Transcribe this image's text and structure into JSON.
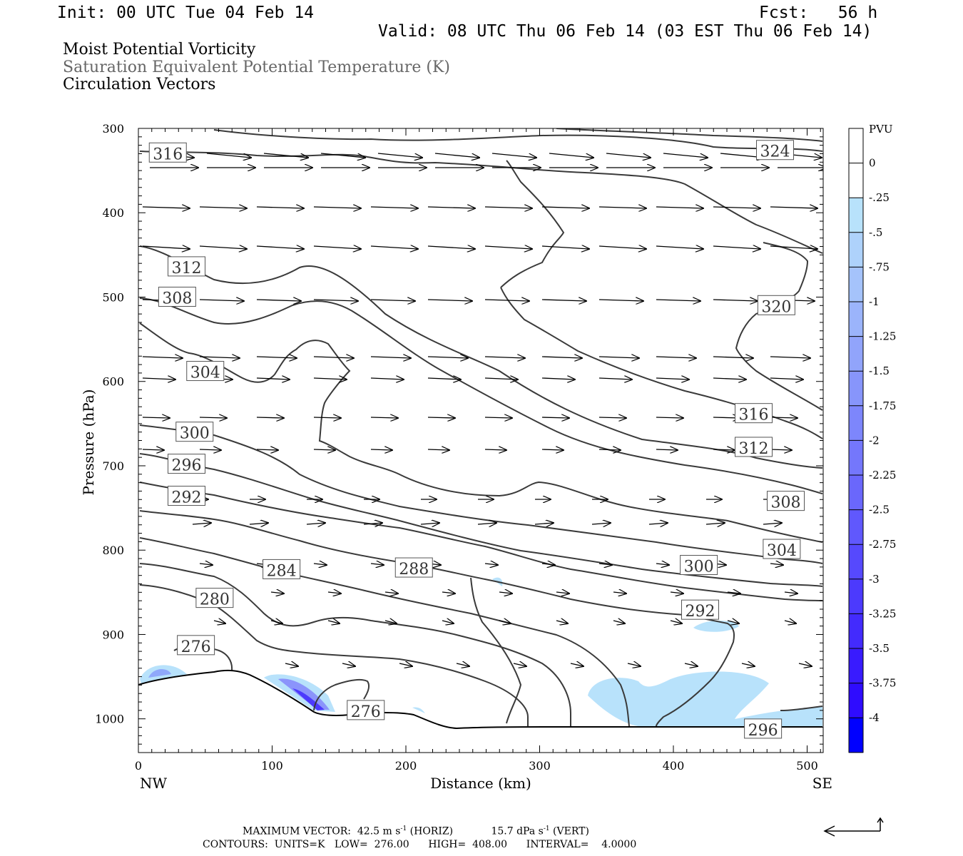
{
  "header": {
    "init": "Init: 00 UTC Tue 04 Feb 14",
    "fcst": "Fcst:   56 h",
    "valid": "Valid: 08 UTC Thu 06 Feb 14 (03 EST Thu 06 Feb 14)",
    "field1": "Moist Potential Vorticity",
    "field2": "Saturation Equivalent Potential Temperature (K)",
    "field3": "Circulation Vectors"
  },
  "chart_data": {
    "type": "cross-section",
    "ylabel": "Pressure (hPa)",
    "xlabel": "Distance (km)",
    "x_left_label": "NW",
    "x_right_label": "SE",
    "xlim": [
      0,
      512
    ],
    "ylim": [
      1040,
      300
    ],
    "x_ticks": [
      0,
      100,
      200,
      300,
      400,
      500
    ],
    "y_ticks": [
      300,
      400,
      500,
      600,
      700,
      800,
      900,
      1000
    ],
    "colorbar": {
      "unit": "PVU",
      "levels": [
        "0",
        "-.25",
        "-.5",
        "-.75",
        "-1",
        "-1.25",
        "-1.5",
        "-1.75",
        "-2",
        "-2.25",
        "-2.5",
        "-2.75",
        "-3",
        "-3.25",
        "-3.5",
        "-3.75",
        "-4"
      ],
      "colors": [
        "#ffffff",
        "#ffffff",
        "#b8e2fb",
        "#aed2fb",
        "#a5c3fb",
        "#9bb4fb",
        "#91a4fb",
        "#8795fb",
        "#7d86fc",
        "#7477fc",
        "#6a67fc",
        "#6058fd",
        "#5649fd",
        "#4c3afd",
        "#432bfd",
        "#391bfe",
        "#2f0cfe",
        "#0000ff"
      ]
    },
    "contour_labels": [
      {
        "text": "316",
        "x": 22,
        "p": 329
      },
      {
        "text": "324",
        "x": 476,
        "p": 326
      },
      {
        "text": "312",
        "x": 36,
        "p": 464
      },
      {
        "text": "308",
        "x": 29,
        "p": 500
      },
      {
        "text": "320",
        "x": 477,
        "p": 510
      },
      {
        "text": "304",
        "x": 50,
        "p": 588
      },
      {
        "text": "316",
        "x": 460,
        "p": 638
      },
      {
        "text": "300",
        "x": 42,
        "p": 660
      },
      {
        "text": "312",
        "x": 460,
        "p": 678
      },
      {
        "text": "296",
        "x": 36,
        "p": 698
      },
      {
        "text": "292",
        "x": 36,
        "p": 736
      },
      {
        "text": "308",
        "x": 484,
        "p": 742
      },
      {
        "text": "304",
        "x": 481,
        "p": 799
      },
      {
        "text": "300",
        "x": 419,
        "p": 818
      },
      {
        "text": "284",
        "x": 107,
        "p": 823
      },
      {
        "text": "288",
        "x": 206,
        "p": 821
      },
      {
        "text": "280",
        "x": 57,
        "p": 857
      },
      {
        "text": "292",
        "x": 420,
        "p": 871
      },
      {
        "text": "276",
        "x": 43,
        "p": 913
      },
      {
        "text": "276",
        "x": 170,
        "p": 990
      },
      {
        "text": "296",
        "x": 467,
        "p": 1012
      }
    ],
    "contour_units": "K",
    "contour_low": "276.00",
    "contour_high": "408.00",
    "contour_interval": "4.0000",
    "max_vector_horiz": "42.5",
    "max_vector_vert": "15.7"
  },
  "footer": {
    "line1_a": "MAXIMUM VECTOR:  42.5 m s",
    "line1_b": " (HORIZ)",
    "line1_c": "15.7 dPa s",
    "line1_d": " (VERT)",
    "exp": "-1",
    "line2": "CONTOURS:  UNITS=K   LOW=  276.00      HIGH=  408.00      INTERVAL=    4.0000"
  }
}
